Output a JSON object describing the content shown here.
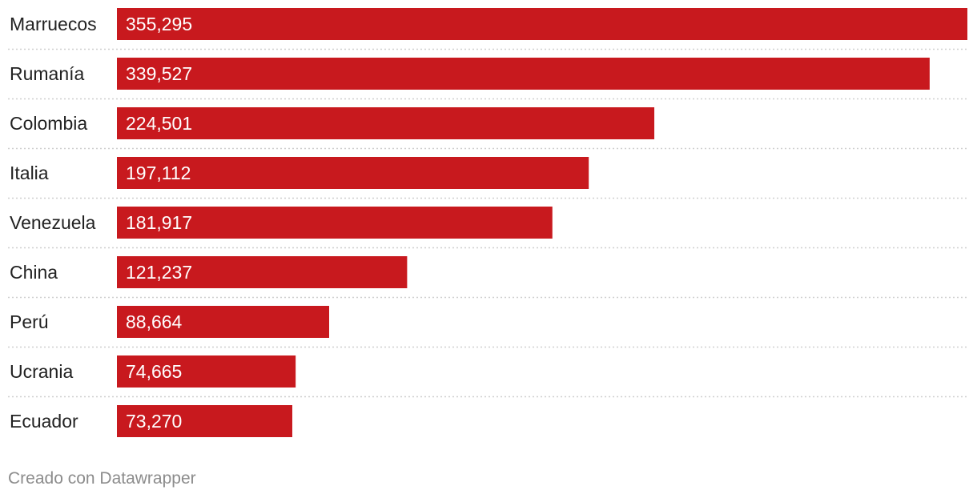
{
  "chart_data": {
    "type": "bar",
    "orientation": "horizontal",
    "categories": [
      "Marruecos",
      "Rumanía",
      "Colombia",
      "Italia",
      "Venezuela",
      "China",
      "Perú",
      "Ucrania",
      "Ecuador"
    ],
    "values": [
      355295,
      339527,
      224501,
      197112,
      181917,
      121237,
      88664,
      74665,
      73270
    ],
    "value_labels": [
      "355,295",
      "339,527",
      "224,501",
      "197,112",
      "181,917",
      "121,237",
      "88,664",
      "74,665",
      "73,270"
    ],
    "xlim": [
      0,
      355295
    ],
    "grid": false,
    "legend": "none",
    "bar_color": "#c8191e",
    "value_label_color": "#ffffff"
  },
  "footer": {
    "credit": "Creado con Datawrapper"
  }
}
